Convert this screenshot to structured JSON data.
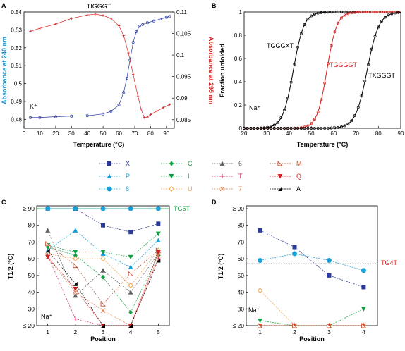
{
  "colors": {
    "blue_axis": "#1f8fc8",
    "red_axis": "#d42020",
    "green": "#10a040",
    "navy": "#2a3a9a",
    "cyan": "#1aa0d8",
    "orange": "#f0a040",
    "gray": "#606060",
    "pink": "#d03060",
    "brown": "#c05030",
    "black": "#000000"
  },
  "chart_data": [
    {
      "panel": "A",
      "type": "line",
      "title": "TIGGGT",
      "xlabel": "Temperature (°C)",
      "ylabel_left": "Absorbance at 240 nm",
      "ylabel_right": "Absorbance at 295 nm",
      "xlim": [
        0,
        95
      ],
      "ylim_left": [
        0.475,
        0.54
      ],
      "ylim_right": [
        0.083,
        0.11
      ],
      "xticks": [
        0,
        10,
        20,
        30,
        40,
        50,
        60,
        70,
        80,
        90
      ],
      "yticks_left": [
        0.48,
        0.49,
        0.5,
        0.51,
        0.52,
        0.53,
        0.54
      ],
      "yticks_left_labels": [
        "0.48",
        "0.49",
        "0.5",
        "0.51",
        "0.52",
        "0.53",
        "0.54"
      ],
      "yticks_right": [
        0.085,
        0.09,
        0.095,
        0.1,
        0.105,
        0.11
      ],
      "yticks_right_labels": [
        "0.085",
        "0.09",
        "0.095",
        "0.1",
        "0.105",
        "0.11"
      ],
      "annotation": "K⁺",
      "series": [
        {
          "axis": "left",
          "color": "#2a3aa0",
          "marker": "circle",
          "x": [
            4,
            10,
            20,
            30,
            40,
            50,
            55,
            60,
            63,
            65,
            67,
            69,
            71,
            73,
            75,
            78,
            82,
            86,
            90,
            92
          ],
          "y": [
            0.481,
            0.481,
            0.4815,
            0.4818,
            0.482,
            0.483,
            0.4845,
            0.488,
            0.495,
            0.503,
            0.513,
            0.523,
            0.529,
            0.532,
            0.533,
            0.534,
            0.535,
            0.536,
            0.537,
            0.5375
          ]
        },
        {
          "axis": "right",
          "color": "#d42020",
          "marker": "plus",
          "x": [
            4,
            10,
            20,
            30,
            40,
            45,
            50,
            55,
            60,
            63,
            66,
            69,
            72,
            74,
            76,
            78,
            80,
            84,
            88,
            92
          ],
          "y": [
            0.1055,
            0.1062,
            0.1072,
            0.1085,
            0.1093,
            0.1095,
            0.1092,
            0.1085,
            0.1068,
            0.1045,
            0.1005,
            0.0955,
            0.0905,
            0.0875,
            0.0855,
            0.0856,
            0.0862,
            0.087,
            0.0878,
            0.0885
          ]
        }
      ]
    },
    {
      "panel": "B",
      "type": "line",
      "xlabel": "Temperature (°C)",
      "ylabel": "Fraction unfolded",
      "xlim": [
        20,
        90
      ],
      "ylim": [
        0,
        1
      ],
      "xticks": [
        20,
        30,
        40,
        50,
        60,
        70,
        80,
        90
      ],
      "yticks": [
        0,
        0.2,
        0.4,
        0.6,
        0.8,
        1
      ],
      "yticks_labels": [
        "0",
        "0.2",
        "0.4",
        "0.6",
        "0.8",
        "1"
      ],
      "annotation": "Na⁺",
      "series": [
        {
          "name": "TGGGXT",
          "color": "#000000",
          "tm": 42,
          "slope": 0.42
        },
        {
          "name": "TGGGGT",
          "color": "#d42020",
          "tm": 57,
          "slope": 0.45
        },
        {
          "name": "TXGGGT",
          "color": "#000000",
          "tm": 75,
          "slope": 0.38
        }
      ]
    },
    {
      "panel": "C",
      "type": "line",
      "xlabel": "Position",
      "ylabel": "T1/2 (°C)",
      "xlim": [
        0.6,
        5.4
      ],
      "ylim": [
        20,
        90
      ],
      "xticks": [
        1,
        2,
        3,
        4,
        5
      ],
      "yticks": [
        20,
        30,
        40,
        50,
        60,
        70,
        80,
        90
      ],
      "yticks_labels": [
        "≤ 20",
        "30",
        "40",
        "50",
        "60",
        "70",
        "80",
        "≥ 90"
      ],
      "ref_line": {
        "value": 90,
        "label": "TG5T",
        "color": "#10a040"
      },
      "annotation": "Na⁺",
      "series": [
        {
          "name": "X",
          "color": "#2a3a9a",
          "marker": "square",
          "values": [
            90,
            90,
            80,
            76,
            81
          ]
        },
        {
          "name": "P",
          "color": "#1aa0d8",
          "marker": "triangle",
          "values": [
            65,
            77,
            63,
            55,
            71
          ]
        },
        {
          "name": "8",
          "color": "#1aa0d8",
          "marker": "circle",
          "values": [
            90,
            90,
            90,
            90,
            90
          ]
        },
        {
          "name": "C",
          "color": "#10a040",
          "marker": "diamond",
          "values": [
            67,
            62,
            49,
            28,
            62
          ]
        },
        {
          "name": "I",
          "color": "#10a040",
          "marker": "tri-down",
          "values": [
            68,
            64,
            64,
            61,
            75
          ]
        },
        {
          "name": "U",
          "color": "#f0a040",
          "marker": "open-diamond",
          "values": [
            63,
            60,
            60,
            44,
            65
          ]
        },
        {
          "name": "6",
          "color": "#606060",
          "marker": "triangle",
          "values": [
            77,
            38,
            53,
            40,
            63
          ]
        },
        {
          "name": "T",
          "color": "#d03060",
          "marker": "plus",
          "values": [
            62,
            24,
            20,
            20,
            60
          ]
        },
        {
          "name": "7",
          "color": "#e08050",
          "marker": "x",
          "values": [
            61,
            40,
            29,
            20,
            62
          ]
        },
        {
          "name": "M",
          "color": "#c05030",
          "marker": "open-tri",
          "values": [
            69,
            56,
            33,
            51,
            65
          ]
        },
        {
          "name": "Q",
          "color": "#d42020",
          "marker": "tri-down",
          "values": [
            61,
            42,
            20,
            20,
            64
          ]
        },
        {
          "name": "A",
          "color": "#000000",
          "marker": "half-tri",
          "values": [
            65,
            45,
            20,
            20,
            59
          ]
        }
      ]
    },
    {
      "panel": "D",
      "type": "line",
      "xlabel": "Position",
      "ylabel": "T1/2 (°C)",
      "xlim": [
        0.6,
        4.4
      ],
      "ylim": [
        20,
        90
      ],
      "xticks": [
        1,
        2,
        3,
        4
      ],
      "yticks": [
        20,
        30,
        40,
        50,
        60,
        70,
        80,
        90
      ],
      "yticks_labels": [
        "≤ 20",
        "30",
        "40",
        "50",
        "60",
        "70",
        "80",
        "≥ 90"
      ],
      "ref_line": {
        "value": 57,
        "label": "TG4T",
        "color": "#d42020"
      },
      "annotation": "Na⁺",
      "series": [
        {
          "name": "X",
          "color": "#2a3a9a",
          "marker": "square",
          "values": [
            77,
            67,
            50,
            43
          ]
        },
        {
          "name": "8",
          "color": "#1aa0d8",
          "marker": "circle",
          "values": [
            59,
            63,
            59,
            53
          ]
        },
        {
          "name": "U",
          "color": "#f0a040",
          "marker": "open-diamond",
          "values": [
            41,
            20,
            20,
            20
          ]
        },
        {
          "name": "I",
          "color": "#10a040",
          "marker": "tri-down",
          "values": [
            23,
            20,
            20,
            30
          ]
        },
        {
          "name": "C",
          "color": "#10a040",
          "marker": "diamond",
          "values": [
            20,
            20,
            20,
            20
          ]
        },
        {
          "name": "Q",
          "color": "#d42020",
          "marker": "tri-down",
          "values": [
            20,
            20,
            20,
            20
          ]
        },
        {
          "name": "7",
          "color": "#e08050",
          "marker": "x",
          "values": [
            20,
            20,
            20,
            20
          ]
        },
        {
          "name": "M",
          "color": "#c05030",
          "marker": "open-tri",
          "values": [
            20,
            20,
            20,
            20
          ]
        }
      ]
    }
  ],
  "panel_labels": {
    "a": "A",
    "b": "B",
    "c": "C",
    "d": "D"
  },
  "legend_order": [
    "X",
    "P",
    "8",
    "C",
    "I",
    "U",
    "6",
    "T",
    "7",
    "M",
    "Q",
    "A"
  ],
  "texts": {
    "a_title": "TIGGGT",
    "a_ylabel_left": "Absorbance at 240 nm",
    "a_ylabel_right": "Absorbance at 295 nm",
    "a_xlabel": "Temperature (°C)",
    "a_ann": "K⁺",
    "b_ylabel": "Fraction unfolded",
    "b_xlabel": "Temperature (°C)",
    "b_ann": "Na⁺",
    "b_s1": "TGGGXT",
    "b_s2": "TGGGGT",
    "b_s3": "TXGGGT",
    "c_xlabel": "Position",
    "c_ylabel": "T1/2 (°C)",
    "c_ann": "Na⁺",
    "c_ref": "TG5T",
    "d_xlabel": "Position",
    "d_ylabel": "T1/2 (°C)",
    "d_ann": "Na⁺",
    "d_ref": "TG4T"
  }
}
